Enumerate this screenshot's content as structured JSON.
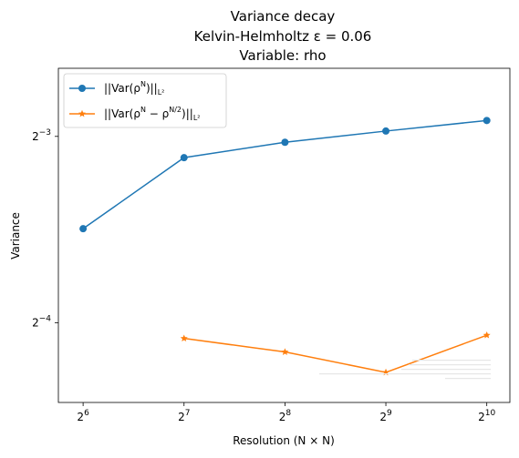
{
  "chart_data": {
    "type": "line",
    "title_lines": [
      "Variance decay",
      "Kelvin-Helmholtz ε = 0.06",
      "Variable: rho"
    ],
    "xlabel": "Resolution (N × N)",
    "ylabel": "Variance",
    "x_scale": "log2",
    "y_scale": "log2",
    "xlim": [
      54,
      1200
    ],
    "ylim": [
      0.0465,
      0.161
    ],
    "x_ticks": [
      64,
      128,
      256,
      512,
      1024
    ],
    "x_tick_labels": [
      {
        "base": "2",
        "exp": "6"
      },
      {
        "base": "2",
        "exp": "7"
      },
      {
        "base": "2",
        "exp": "8"
      },
      {
        "base": "2",
        "exp": "9"
      },
      {
        "base": "2",
        "exp": "10"
      }
    ],
    "y_ticks": [
      0.0625,
      0.125
    ],
    "y_tick_labels": [
      {
        "base": "2",
        "exp": "−4"
      },
      {
        "base": "2",
        "exp": "−3"
      }
    ],
    "grid": false,
    "legend_position": "top-left",
    "series": [
      {
        "name": "||Var(ρ^N)||_{L²}",
        "legend": {
          "main": "||Var(ρ",
          "sup1": "N",
          "rest": ")||",
          "sub": "L²"
        },
        "color": "#1f77b4",
        "marker": "circle",
        "x": [
          64,
          128,
          256,
          512,
          1024
        ],
        "y": [
          0.0887,
          0.1155,
          0.1223,
          0.1275,
          0.1326
        ]
      },
      {
        "name": "||Var(ρ^N − ρ^{N/2})||_{L²}",
        "legend": {
          "main": "||Var(ρ",
          "sup1": "N",
          "mid": " − ρ",
          "sup2": "N/2",
          "rest": ")||",
          "sub": "L²"
        },
        "color": "#ff7f0e",
        "marker": "star",
        "x": [
          128,
          256,
          512,
          1024
        ],
        "y": [
          0.059,
          0.0561,
          0.052,
          0.0597
        ]
      }
    ]
  }
}
